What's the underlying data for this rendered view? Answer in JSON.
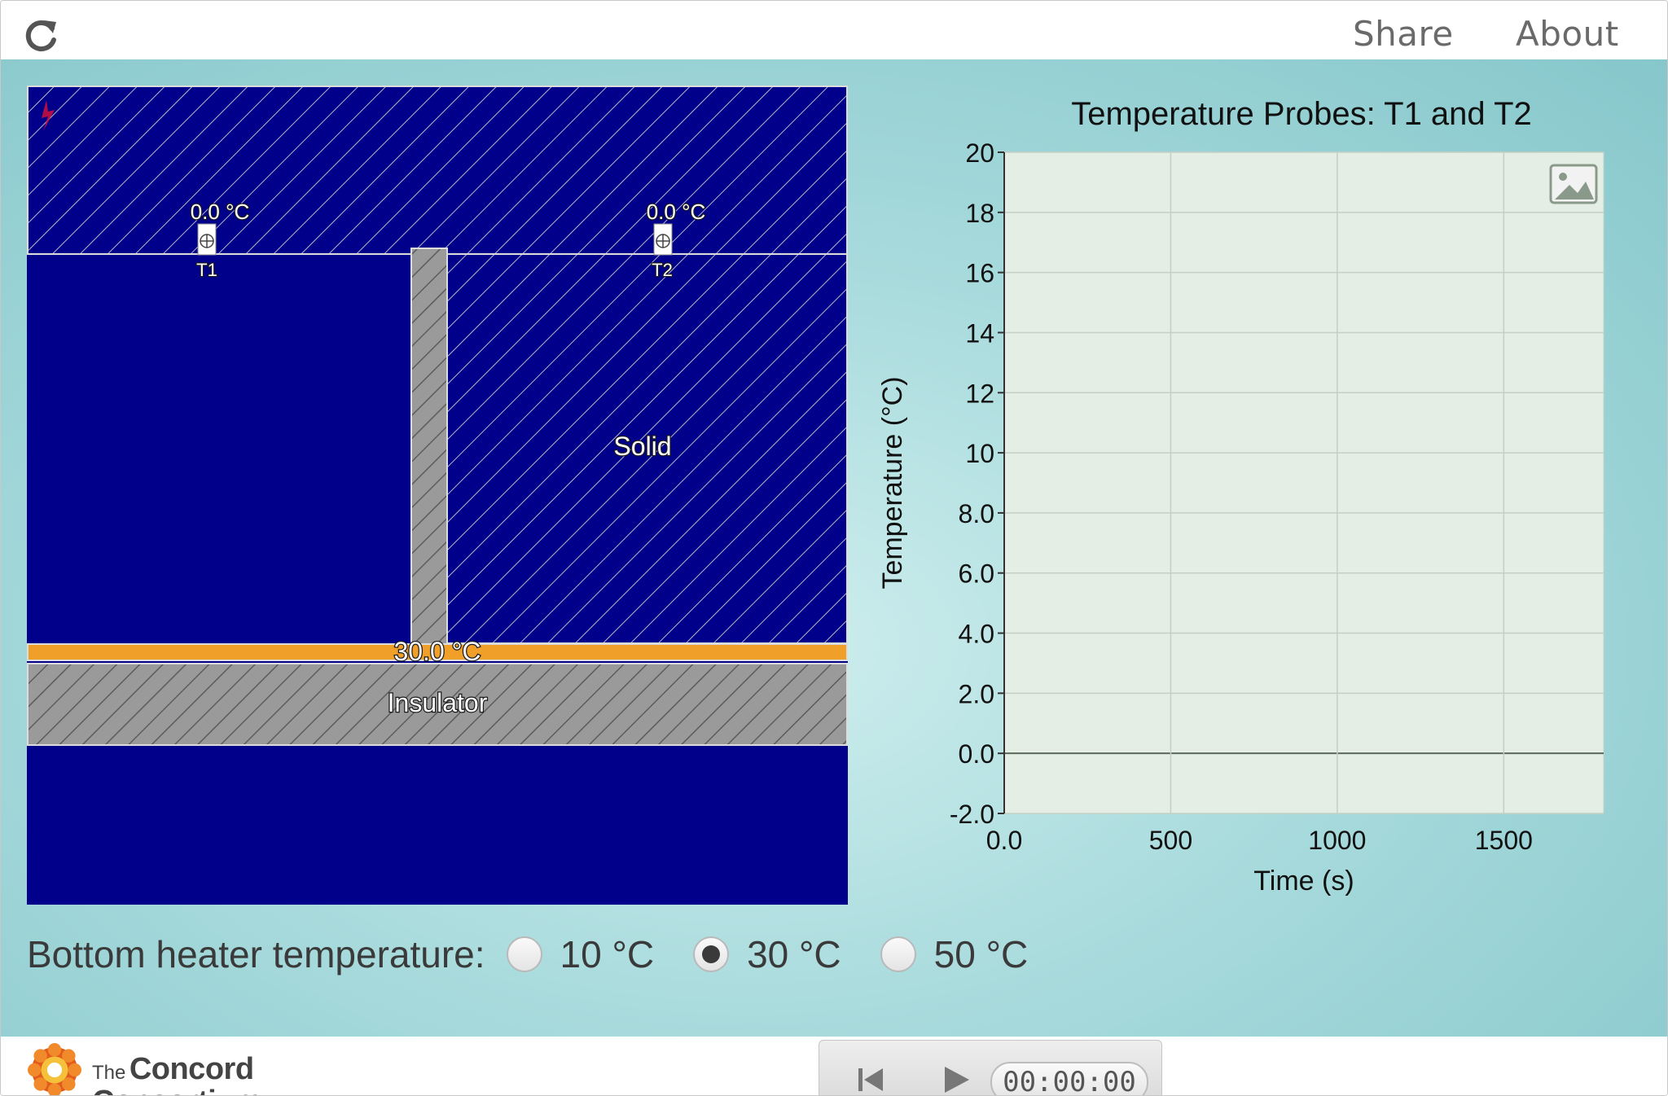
{
  "topbar": {
    "share_label": "Share",
    "about_label": "About",
    "reload_icon": "reload-icon"
  },
  "simulation": {
    "probe_t1_reading": "0.0 °C",
    "probe_t1_label": "T1",
    "probe_t2_reading": "0.0 °C",
    "probe_t2_label": "T2",
    "heater_reading": "30.0 °C",
    "solid_label": "Solid",
    "insulator_label": "Insulator",
    "colors": {
      "background": "#00008b",
      "heater": "#f0a028",
      "insulator": "#9a9a9a"
    }
  },
  "controls": {
    "bottom_heater_label": "Bottom heater temperature:",
    "options": [
      {
        "label": "10 °C",
        "checked": false
      },
      {
        "label": "30 °C",
        "checked": true
      },
      {
        "label": "50 °C",
        "checked": false
      }
    ]
  },
  "chart_data": {
    "type": "line",
    "title": "Temperature Probes: T1 and T2",
    "xlabel": "Time (s)",
    "ylabel": "Temperature (°C)",
    "xlim": [
      0,
      1800
    ],
    "ylim": [
      -2,
      20
    ],
    "xticks": [
      0,
      500,
      1000,
      1500
    ],
    "xtick_labels": [
      "0.0",
      "500",
      "1000",
      "1500"
    ],
    "yticks": [
      -2,
      0,
      2,
      4,
      6,
      8,
      10,
      12,
      14,
      16,
      18,
      20
    ],
    "ytick_labels": [
      "-2.0",
      "0.0",
      "2.0",
      "4.0",
      "6.0",
      "8.0",
      "10",
      "12",
      "14",
      "16",
      "18",
      "20"
    ],
    "series": [],
    "grid": true,
    "zero_line": true
  },
  "bottombar": {
    "logo_small": "The",
    "logo_line1": "Concord",
    "logo_line2": "Consortium",
    "timer": "00:00:00"
  }
}
